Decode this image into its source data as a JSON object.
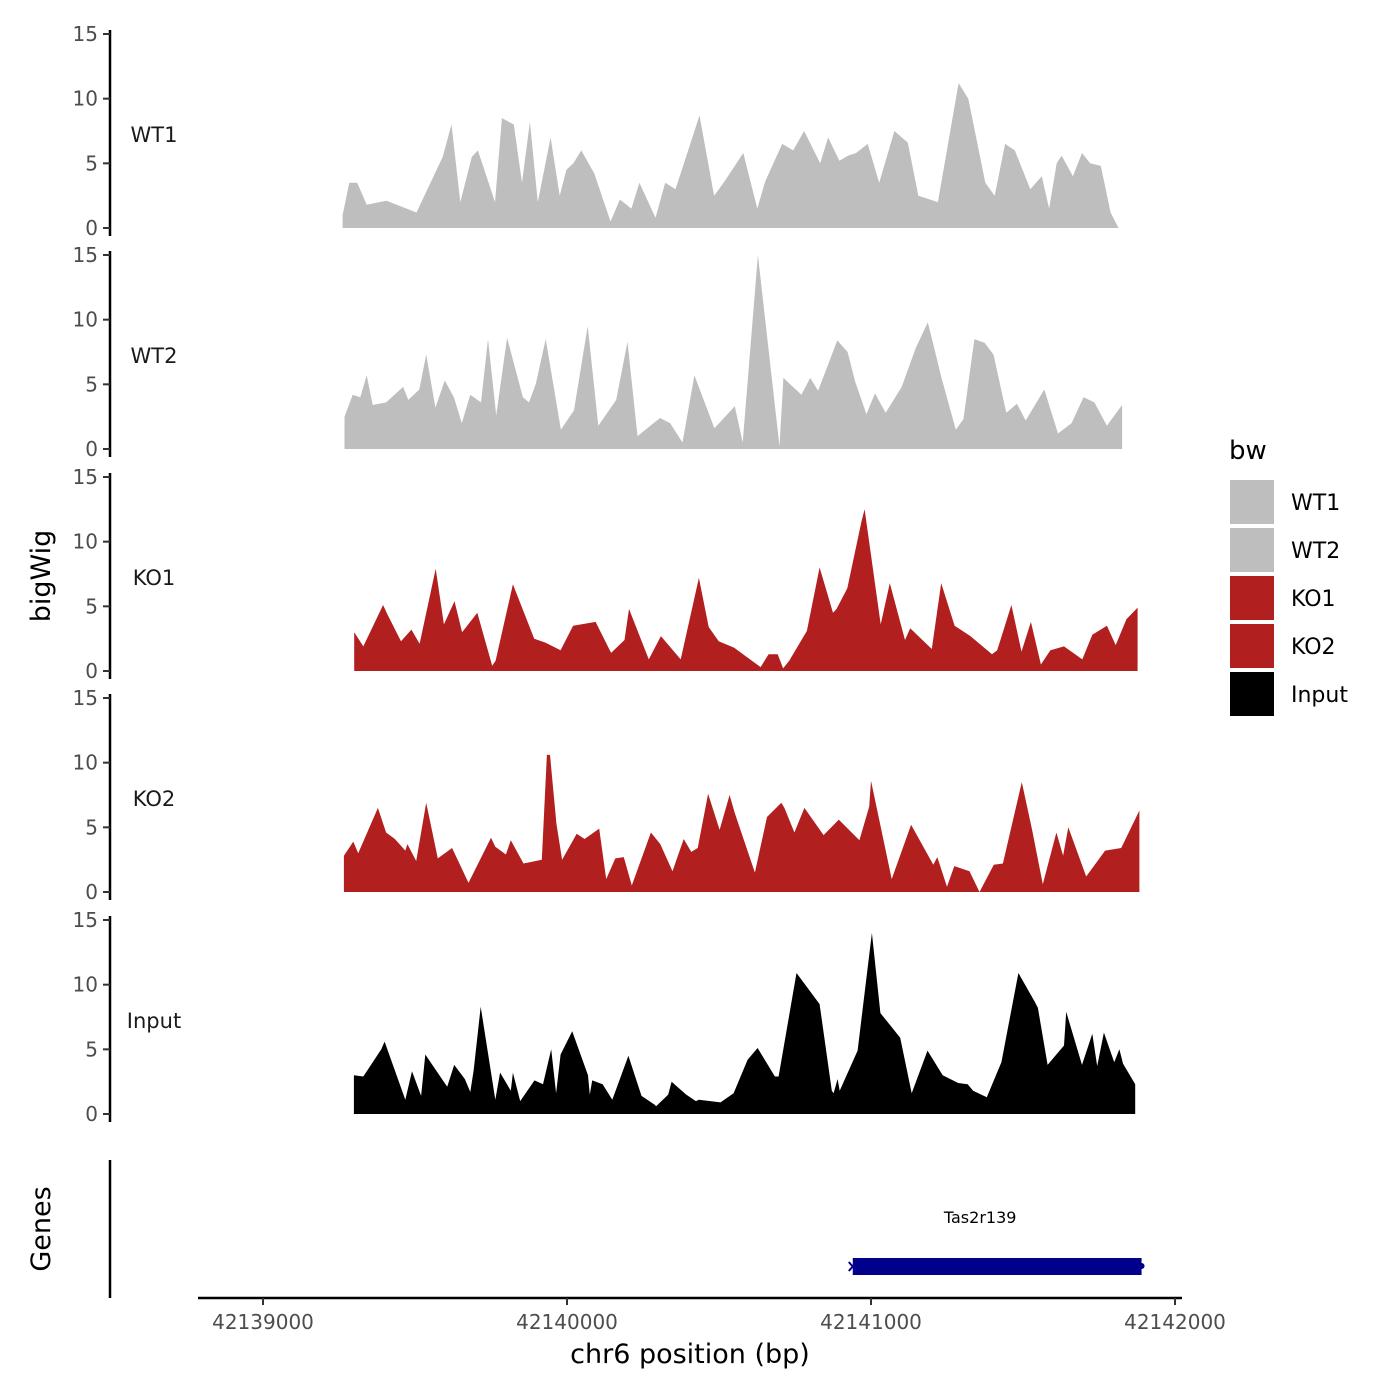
{
  "chart_data": {
    "type": "area",
    "title": "",
    "xlabel": "chr6 position (bp)",
    "ylabel": "bigWig",
    "genes_label": "Genes",
    "xlim": [
      42138800,
      42142000
    ],
    "x_ticks": [
      42139000,
      42140000,
      42141000,
      42142000
    ],
    "x_tick_labels": [
      "42139000",
      "42140000",
      "42141000",
      "42142000"
    ],
    "ylim": [
      0,
      15
    ],
    "y_ticks": [
      0,
      5,
      10,
      15
    ],
    "y_tick_labels": [
      "0",
      "5",
      "10",
      "15"
    ],
    "legend": {
      "title": "bw",
      "position": "right",
      "entries": [
        {
          "label": "WT1",
          "color": "#bebebe"
        },
        {
          "label": "WT2",
          "color": "#bebebe"
        },
        {
          "label": "KO1",
          "color": "#b21f1f"
        },
        {
          "label": "KO2",
          "color": "#b21f1f"
        },
        {
          "label": "Input",
          "color": "#000000"
        }
      ]
    },
    "series": [
      {
        "name": "WT1",
        "color": "#bebebe",
        "x": [
          42139262,
          42139284,
          42139310,
          42139341,
          42139406,
          42139505,
          42139591,
          42139620,
          42139649,
          42139687,
          42139707,
          42139763,
          42139786,
          42139825,
          42139852,
          42139878,
          42139904,
          42139946,
          42139976,
          42139998,
          42140021,
          42140047,
          42140090,
          42140143,
          42140174,
          42140212,
          42140238,
          42140291,
          42140323,
          42140357,
          42140436,
          42140484,
          42140515,
          42140580,
          42140626,
          42140652,
          42140708,
          42140744,
          42140780,
          42140833,
          42140859,
          42140896,
          42140925,
          42140951,
          42140989,
          42141027,
          42141077,
          42141121,
          42141156,
          42141220,
          42141288,
          42141320,
          42141376,
          42141407,
          42141441,
          42141473,
          42141524,
          42141562,
          42141586,
          42141611,
          42141627,
          42141664,
          42141694,
          42141721,
          42141756,
          42141788,
          42141814,
          42141848,
          42141870,
          42141890
        ],
        "values": [
          1.0,
          3.5,
          3.5,
          1.8,
          2.1,
          1.2,
          5.5,
          8.0,
          2.0,
          5.5,
          6.0,
          2.0,
          8.5,
          8.0,
          3.5,
          8.2,
          2.0,
          7.0,
          2.5,
          4.5,
          5.0,
          6.0,
          4.2,
          0.5,
          2.2,
          1.5,
          3.5,
          0.8,
          3.5,
          3.0,
          8.7,
          2.5,
          3.5,
          5.8,
          1.5,
          3.6,
          6.5,
          6.0,
          7.5,
          5.0,
          7.0,
          5.2,
          5.6,
          5.8,
          6.5,
          3.5,
          7.5,
          6.6,
          2.5,
          2.0,
          11.2,
          10.0,
          3.5,
          2.5,
          6.5,
          6.0,
          3.0,
          4.0,
          1.5,
          5.0,
          5.6,
          4.0,
          5.8,
          5.0,
          4.8,
          1.2,
          0.0,
          0.0,
          0.0,
          0.0
        ]
      },
      {
        "name": "WT2",
        "color": "#bebebe",
        "x": [
          42139268,
          42139295,
          42139320,
          42139341,
          42139361,
          42139405,
          42139461,
          42139478,
          42139514,
          42139537,
          42139567,
          42139598,
          42139628,
          42139654,
          42139682,
          42139717,
          42139740,
          42139767,
          42139803,
          42139855,
          42139875,
          42139897,
          42139930,
          42139980,
          42140003,
          42140023,
          42140068,
          42140103,
          42140162,
          42140199,
          42140232,
          42140306,
          42140339,
          42140380,
          42140419,
          42140485,
          42140552,
          42140578,
          42140628,
          42140699,
          42140712,
          42140771,
          42140800,
          42140826,
          42140889,
          42140923,
          42140948,
          42140985,
          42141013,
          42141048,
          42141101,
          42141147,
          42141187,
          42141206,
          42141232,
          42141279,
          42141304,
          42141340,
          42141374,
          42141403,
          42141445,
          42141480,
          42141509,
          42141570,
          42141615,
          42141660,
          42141699,
          42141735,
          42141776,
          42141826
        ],
        "values": [
          2.5,
          4.2,
          4.0,
          5.7,
          3.4,
          3.6,
          4.8,
          3.8,
          4.6,
          7.3,
          3.2,
          5.3,
          4.0,
          2.0,
          4.2,
          3.6,
          8.5,
          2.6,
          8.6,
          4.0,
          3.6,
          5.0,
          8.5,
          1.5,
          2.3,
          3.0,
          9.5,
          1.8,
          3.8,
          8.3,
          1.0,
          2.4,
          2.0,
          0.5,
          5.7,
          1.6,
          3.3,
          0.5,
          15.0,
          0.2,
          5.5,
          4.2,
          5.5,
          4.5,
          8.4,
          7.5,
          5.2,
          2.7,
          4.3,
          2.8,
          4.8,
          7.8,
          9.8,
          8.0,
          5.5,
          1.5,
          2.3,
          8.5,
          8.2,
          7.3,
          2.8,
          3.5,
          2.2,
          4.6,
          1.2,
          2.0,
          4.0,
          3.6,
          1.8,
          3.4
        ]
      },
      {
        "name": "KO1",
        "color": "#b21f1f",
        "x": [
          42139300,
          42139330,
          42139395,
          42139409,
          42139454,
          42139488,
          42139515,
          42139568,
          42139595,
          42139630,
          42139655,
          42139705,
          42139754,
          42139765,
          42139822,
          42139892,
          42139928,
          42139979,
          42140020,
          42140094,
          42140145,
          42140189,
          42140204,
          42140269,
          42140309,
          42140374,
          42140434,
          42140466,
          42140499,
          42140550,
          42140637,
          42140663,
          42140693,
          42140711,
          42140731,
          42140789,
          42140831,
          42140875,
          42140887,
          42140922,
          42140968,
          42140979,
          42141032,
          42141062,
          42141112,
          42141129,
          42141200,
          42141231,
          42141275,
          42141327,
          42141398,
          42141415,
          42141462,
          42141495,
          42141526,
          42141559,
          42141590,
          42141635,
          42141695,
          42141728,
          42141776,
          42141805,
          42141840,
          42141877
        ],
        "values": [
          3.0,
          1.9,
          5.1,
          4.4,
          2.3,
          3.2,
          2.1,
          7.9,
          3.6,
          5.4,
          3.0,
          4.5,
          0.4,
          0.8,
          6.7,
          2.5,
          2.2,
          1.6,
          3.5,
          3.8,
          1.4,
          2.4,
          4.8,
          0.9,
          2.7,
          0.9,
          7.2,
          3.4,
          2.3,
          1.8,
          0.3,
          1.3,
          1.3,
          0.2,
          0.8,
          3.1,
          8.0,
          4.5,
          4.8,
          6.4,
          11.5,
          12.5,
          3.6,
          6.8,
          2.4,
          3.3,
          1.7,
          6.8,
          3.5,
          2.7,
          1.3,
          1.6,
          5.1,
          1.5,
          3.8,
          0.5,
          1.6,
          1.9,
          0.9,
          2.8,
          3.5,
          2.0,
          4.0,
          4.9
        ]
      },
      {
        "name": "KO2",
        "color": "#b21f1f",
        "x": [
          42139266,
          42139297,
          42139313,
          42139378,
          42139405,
          42139434,
          42139468,
          42139475,
          42139504,
          42139537,
          42139575,
          42139622,
          42139676,
          42139750,
          42139764,
          42139799,
          42139815,
          42139857,
          42139917,
          42139934,
          42139944,
          42139965,
          42139984,
          42140032,
          42140058,
          42140106,
          42140129,
          42140159,
          42140187,
          42140213,
          42140276,
          42140307,
          42140347,
          42140384,
          42140409,
          42140430,
          42140464,
          42140502,
          42140535,
          42140552,
          42140618,
          42140658,
          42140705,
          42140715,
          42140748,
          42140781,
          42140844,
          42140894,
          42140919,
          42140962,
          42140994,
          42141000,
          42141068,
          42141132,
          42141205,
          42141218,
          42141250,
          42141274,
          42141324,
          42141357,
          42141404,
          42141434,
          42141496,
          42141530,
          42141565,
          42141610,
          42141632,
          42141649,
          42141708,
          42141770,
          42141823,
          42141883
        ],
        "values": [
          2.8,
          3.9,
          3.0,
          6.5,
          4.6,
          4.1,
          3.2,
          3.7,
          2.4,
          6.9,
          2.6,
          3.4,
          0.7,
          4.2,
          3.5,
          2.9,
          4.0,
          2.2,
          2.5,
          10.6,
          10.6,
          5.3,
          2.5,
          4.5,
          4.1,
          4.9,
          1.0,
          2.6,
          2.7,
          0.5,
          4.6,
          3.7,
          1.6,
          4.1,
          3.1,
          3.4,
          7.6,
          4.8,
          7.5,
          6.1,
          1.5,
          5.8,
          6.9,
          6.5,
          4.6,
          6.5,
          4.4,
          5.6,
          5.0,
          4.0,
          6.6,
          8.6,
          1.0,
          5.2,
          2.1,
          2.7,
          0.4,
          2.0,
          1.6,
          0.0,
          2.1,
          2.2,
          8.5,
          4.8,
          0.6,
          4.6,
          2.8,
          5.0,
          1.2,
          3.2,
          3.4,
          6.3
        ]
      },
      {
        "name": "Input",
        "color": "#000000",
        "x": [
          42139299,
          42139330,
          42139389,
          42139400,
          42139468,
          42139490,
          42139520,
          42139534,
          42139606,
          42139629,
          42139664,
          42139682,
          42139693,
          42139716,
          42139764,
          42139780,
          42139815,
          42139822,
          42139846,
          42139893,
          42139921,
          42139948,
          42139964,
          42139979,
          42140017,
          42140069,
          42140075,
          42140083,
          42140117,
          42140149,
          42140202,
          42140245,
          42140289,
          42140293,
          42140333,
          42140344,
          42140392,
          42140424,
          42140434,
          42140505,
          42140548,
          42140594,
          42140627,
          42140684,
          42140696,
          42140755,
          42140831,
          42140871,
          42140877,
          42140890,
          42140897,
          42140956,
          42141003,
          42141031,
          42141096,
          42141134,
          42141186,
          42141236,
          42141287,
          42141318,
          42141336,
          42141381,
          42141429,
          42141485,
          42141538,
          42141549,
          42141581,
          42141635,
          42141642,
          42141694,
          42141728,
          42141744,
          42141766,
          42141800,
          42141817,
          42141829,
          42141869
        ],
        "values": [
          3.0,
          2.9,
          5.0,
          5.6,
          1.1,
          3.3,
          1.4,
          4.6,
          2.1,
          3.8,
          2.7,
          1.7,
          3.4,
          8.3,
          1.1,
          3.2,
          1.8,
          3.2,
          1.0,
          2.6,
          2.3,
          5.0,
          1.6,
          4.6,
          6.4,
          3.0,
          1.5,
          2.6,
          2.3,
          1.1,
          4.5,
          1.4,
          0.7,
          0.6,
          1.5,
          2.5,
          1.5,
          1.0,
          1.1,
          0.9,
          1.6,
          4.2,
          5.1,
          2.9,
          2.9,
          10.9,
          8.5,
          1.8,
          1.6,
          2.7,
          1.8,
          4.9,
          14.0,
          7.8,
          5.9,
          1.6,
          4.9,
          3.0,
          2.4,
          2.3,
          1.8,
          1.3,
          4.0,
          10.9,
          8.7,
          8.2,
          3.8,
          5.3,
          7.9,
          3.8,
          6.2,
          3.7,
          6.3,
          4.0,
          5.0,
          3.9,
          2.3
        ]
      }
    ],
    "genes": [
      {
        "name": "Tas2r139",
        "start": 42140940,
        "end": 42141890,
        "strand": "-",
        "color": "#00008b"
      }
    ]
  }
}
